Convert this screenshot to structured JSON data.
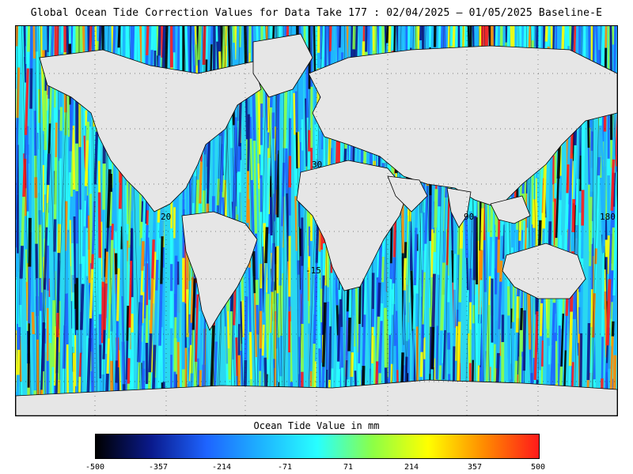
{
  "title": "Global Ocean Tide Correction Values for Data Take 177 : 02/04/2025 – 01/05/2025 Baseline-E",
  "legend": {
    "title": "Ocean Tide Value in mm",
    "ticks": [
      "-500",
      "-357",
      "-214",
      "-71",
      "71",
      "214",
      "357",
      "500"
    ],
    "colors": [
      "#000000",
      "#0a1a8c",
      "#1e64ff",
      "#1eb4ff",
      "#28ffff",
      "#8cff46",
      "#ffff00",
      "#ff8c00",
      "#ff1a1a"
    ]
  },
  "map": {
    "land_color": "#e6e6e6",
    "grid_labels": [
      "30",
      "90",
      "-15"
    ],
    "edge_labels": [
      "20",
      "180"
    ]
  }
}
